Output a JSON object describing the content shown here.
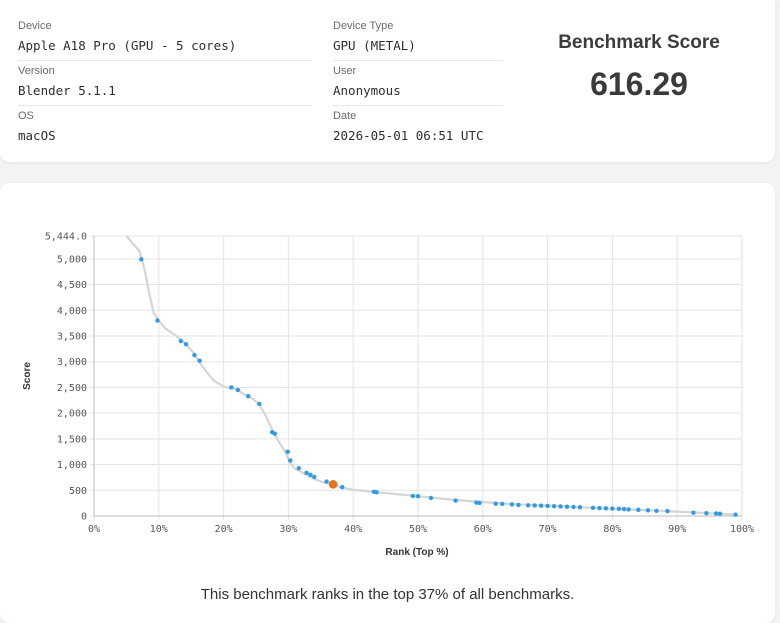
{
  "info": {
    "device_label": "Device",
    "device_value": "Apple A18 Pro (GPU - 5 cores)",
    "version_label": "Version",
    "version_value": "Blender 5.1.1",
    "os_label": "OS",
    "os_value": "macOS",
    "device_type_label": "Device Type",
    "device_type_value": "GPU (METAL)",
    "user_label": "User",
    "user_value": "Anonymous",
    "date_label": "Date",
    "date_value": "2026-05-01 06:51 UTC",
    "score_label": "Benchmark Score",
    "score_value": "616.29"
  },
  "chart_data": {
    "type": "scatter",
    "xlabel": "Rank (Top %)",
    "ylabel": "Score",
    "xlim": [
      0,
      100
    ],
    "ylim": [
      0,
      5444.0
    ],
    "x_ticks": [
      "0%",
      "10%",
      "20%",
      "30%",
      "40%",
      "50%",
      "60%",
      "70%",
      "80%",
      "90%",
      "100%"
    ],
    "y_ticks": [
      "0",
      "500",
      "1,000",
      "1,500",
      "2,000",
      "2,500",
      "3,000",
      "3,500",
      "4,000",
      "4,500",
      "5,000",
      "5,444.0"
    ],
    "y_tick_values": [
      0,
      500,
      1000,
      1500,
      2000,
      2500,
      3000,
      3500,
      4000,
      4500,
      5000,
      5444
    ],
    "grid": true,
    "colors": {
      "points": "#2f9be6",
      "highlight": "#e8711c",
      "curve": "#d5d5d5",
      "grid": "#e3e3e3"
    },
    "curve": [
      [
        5,
        5444
      ],
      [
        7,
        5150
      ],
      [
        7.8,
        4800
      ],
      [
        8.5,
        4350
      ],
      [
        9.2,
        3950
      ],
      [
        10,
        3800
      ],
      [
        11,
        3650
      ],
      [
        12.5,
        3520
      ],
      [
        13.5,
        3420
      ],
      [
        14.5,
        3300
      ],
      [
        15.5,
        3150
      ],
      [
        16.5,
        2950
      ],
      [
        17.5,
        2780
      ],
      [
        18.5,
        2630
      ],
      [
        20,
        2520
      ],
      [
        21,
        2490
      ],
      [
        22,
        2470
      ],
      [
        23,
        2380
      ],
      [
        24.5,
        2280
      ],
      [
        25.5,
        2170
      ],
      [
        26.5,
        1950
      ],
      [
        27.5,
        1680
      ],
      [
        28.5,
        1450
      ],
      [
        29.5,
        1250
      ],
      [
        30.2,
        1050
      ],
      [
        31,
        920
      ],
      [
        32.5,
        820
      ],
      [
        34,
        720
      ],
      [
        35.5,
        650
      ],
      [
        37,
        620
      ],
      [
        38,
        560
      ],
      [
        40,
        510
      ],
      [
        43,
        470
      ],
      [
        47,
        420
      ],
      [
        50,
        385
      ],
      [
        55,
        320
      ],
      [
        60,
        270
      ],
      [
        65,
        230
      ],
      [
        70,
        200
      ],
      [
        75,
        170
      ],
      [
        80,
        140
      ],
      [
        85,
        115
      ],
      [
        90,
        85
      ],
      [
        95,
        55
      ],
      [
        99,
        25
      ]
    ],
    "points": [
      [
        7.3,
        4990
      ],
      [
        9.8,
        3800
      ],
      [
        13.4,
        3400
      ],
      [
        14.2,
        3340
      ],
      [
        15.5,
        3130
      ],
      [
        16.3,
        3020
      ],
      [
        21.2,
        2500
      ],
      [
        22.2,
        2450
      ],
      [
        23.8,
        2330
      ],
      [
        25.5,
        2180
      ],
      [
        27.5,
        1630
      ],
      [
        27.9,
        1600
      ],
      [
        29.9,
        1250
      ],
      [
        30.3,
        1080
      ],
      [
        31.6,
        930
      ],
      [
        32.8,
        840
      ],
      [
        33.4,
        800
      ],
      [
        34,
        760
      ],
      [
        35.9,
        670
      ],
      [
        38.3,
        560
      ],
      [
        43.2,
        470
      ],
      [
        43.6,
        460
      ],
      [
        49.2,
        390
      ],
      [
        50,
        385
      ],
      [
        52,
        350
      ],
      [
        55.8,
        300
      ],
      [
        59,
        260
      ],
      [
        59.5,
        255
      ],
      [
        62,
        240
      ],
      [
        63,
        235
      ],
      [
        64.5,
        225
      ],
      [
        65.5,
        215
      ],
      [
        67,
        208
      ],
      [
        68,
        205
      ],
      [
        69,
        200
      ],
      [
        70,
        195
      ],
      [
        71,
        190
      ],
      [
        72,
        185
      ],
      [
        73,
        180
      ],
      [
        74,
        175
      ],
      [
        75,
        170
      ],
      [
        77,
        160
      ],
      [
        78,
        155
      ],
      [
        79,
        150
      ],
      [
        80,
        145
      ],
      [
        81,
        140
      ],
      [
        81.8,
        135
      ],
      [
        82.5,
        128
      ],
      [
        84,
        120
      ],
      [
        85.5,
        110
      ],
      [
        86.8,
        100
      ],
      [
        88.5,
        95
      ],
      [
        92.5,
        65
      ],
      [
        94.5,
        55
      ],
      [
        96,
        50
      ],
      [
        96.6,
        45
      ],
      [
        99,
        25
      ]
    ],
    "highlight": [
      36.9,
      616.29
    ],
    "annotation": "This benchmark ranks in the top 37% of all benchmarks."
  }
}
